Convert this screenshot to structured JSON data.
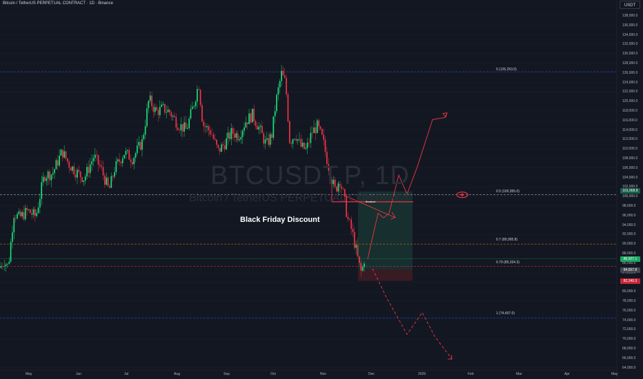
{
  "header": {
    "title": "Bitcoin / TetherUS PERPETUAL CONTRACT · 1D · Binance",
    "currency_button": "USDT"
  },
  "watermark": {
    "symbol": "BTCUSDT.P, 1D",
    "name": "Bitcoin / TetherUS PERPETUAL CONTRACT"
  },
  "annotations": {
    "black_friday": "Black Friday Discount",
    "breakout": "Breakout"
  },
  "fib_levels": [
    {
      "label": "0 (126,253.0)",
      "color": "#2962ff"
    },
    {
      "label": "0.5 (100,355.0)",
      "color": "#d1d4dc"
    },
    {
      "label": "0.7 (89,995.8)",
      "color": "#f57c00"
    },
    {
      "label": "0.79 (85,334.3)",
      "color": "#f23645"
    },
    {
      "label": "1 (74,457.0)",
      "color": "#2962ff"
    }
  ],
  "price_axis": [
    "138,000.0",
    "136,000.0",
    "134,000.0",
    "132,000.0",
    "130,000.0",
    "128,000.0",
    "126,000.0",
    "124,000.0",
    "122,000.0",
    "120,000.0",
    "118,000.0",
    "116,000.0",
    "114,000.0",
    "112,000.0",
    "110,000.0",
    "108,000.0",
    "106,000.0",
    "104,000.0",
    "102,000.0",
    "100,000.0",
    "98,000.0",
    "96,000.0",
    "94,000.0",
    "92,000.0",
    "90,000.0",
    "88,000.0",
    "86,000.0",
    "84,000.0",
    "82,000.0",
    "80,000.0",
    "78,000.0",
    "76,000.0",
    "74,000.0",
    "72,000.0",
    "70,000.0",
    "68,000.0",
    "66,000.0",
    "64,000.0"
  ],
  "price_tags": {
    "target": "101,068.8",
    "last": "86,927.1",
    "entry": "84,657.8",
    "stop": "82,240.3"
  },
  "time_axis": [
    "May",
    "Jun",
    "Jul",
    "Aug",
    "Sep",
    "Oct",
    "Nov",
    "Dec",
    "2026",
    "Feb",
    "Mar",
    "Apr",
    "May"
  ],
  "colors": {
    "background": "#131722",
    "up": "#26a69a",
    "up_bright": "#1be07a",
    "down": "#f23645",
    "projection": "#f23645",
    "target_zone": "#1a3a34",
    "stop_zone": "#3d1c24"
  },
  "chart_data": {
    "type": "candlestick",
    "title": "Bitcoin / TetherUS PERPETUAL CONTRACT · 1D · Binance",
    "ylim": [
      63000,
      139500
    ],
    "y_ticks": [
      64000,
      138000
    ],
    "x": [
      "May",
      "Jun",
      "Jul",
      "Aug",
      "Sep",
      "Oct",
      "Nov",
      "Dec",
      "2026",
      "Feb",
      "Mar",
      "Apr",
      "May"
    ],
    "close_path": [
      [
        0,
        85000
      ],
      [
        6,
        86500
      ],
      [
        12,
        85200
      ],
      [
        20,
        96500
      ],
      [
        28,
        95500
      ],
      [
        40,
        97000
      ],
      [
        52,
        95800
      ],
      [
        64,
        104500
      ],
      [
        76,
        104800
      ],
      [
        90,
        109500
      ],
      [
        100,
        106800
      ],
      [
        110,
        105200
      ],
      [
        122,
        103800
      ],
      [
        136,
        108500
      ],
      [
        146,
        106000
      ],
      [
        158,
        101200
      ],
      [
        166,
        105800
      ],
      [
        180,
        109200
      ],
      [
        192,
        108000
      ],
      [
        206,
        111500
      ],
      [
        216,
        120500
      ],
      [
        226,
        117800
      ],
      [
        236,
        118500
      ],
      [
        246,
        117800
      ],
      [
        258,
        115200
      ],
      [
        270,
        114000
      ],
      [
        280,
        119000
      ],
      [
        288,
        123800
      ],
      [
        294,
        115200
      ],
      [
        306,
        113500
      ],
      [
        316,
        109500
      ],
      [
        326,
        111200
      ],
      [
        336,
        113500
      ],
      [
        346,
        112800
      ],
      [
        356,
        115800
      ],
      [
        366,
        117200
      ],
      [
        376,
        114200
      ],
      [
        386,
        110800
      ],
      [
        394,
        113000
      ],
      [
        400,
        120000
      ],
      [
        408,
        125800
      ],
      [
        414,
        123800
      ],
      [
        420,
        111500
      ],
      [
        428,
        113200
      ],
      [
        436,
        110500
      ],
      [
        444,
        109800
      ],
      [
        452,
        113500
      ],
      [
        460,
        114800
      ],
      [
        468,
        111800
      ],
      [
        474,
        107800
      ],
      [
        480,
        104000
      ],
      [
        486,
        101200
      ],
      [
        492,
        103800
      ],
      [
        498,
        100200
      ],
      [
        504,
        95200
      ],
      [
        510,
        92800
      ],
      [
        516,
        88800
      ],
      [
        520,
        85800
      ],
      [
        524,
        83800
      ],
      [
        528,
        86900
      ]
    ],
    "fib_retracement": [
      {
        "level": 0,
        "price": 126253.0
      },
      {
        "level": 0.5,
        "price": 100355.0
      },
      {
        "level": 0.7,
        "price": 89995.8
      },
      {
        "level": 0.79,
        "price": 85334.3
      },
      {
        "level": 1,
        "price": 74457.0
      }
    ],
    "position": {
      "entry": 84657.8,
      "target": 101068.8,
      "stop": 82240.3,
      "last": 86927.1
    },
    "bullish_projection": [
      [
        533,
        86900
      ],
      [
        548,
        96500
      ],
      [
        556,
        95500
      ],
      [
        564,
        96500
      ],
      [
        578,
        104500
      ],
      [
        590,
        100500
      ],
      [
        605,
        106300
      ],
      [
        627,
        116200
      ],
      [
        645,
        116600
      ],
      [
        648,
        117600
      ]
    ],
    "bearish_projection": [
      [
        540,
        84800
      ],
      [
        560,
        78800
      ],
      [
        590,
        71000
      ],
      [
        612,
        75600
      ],
      [
        630,
        70600
      ],
      [
        655,
        65800
      ]
    ]
  }
}
